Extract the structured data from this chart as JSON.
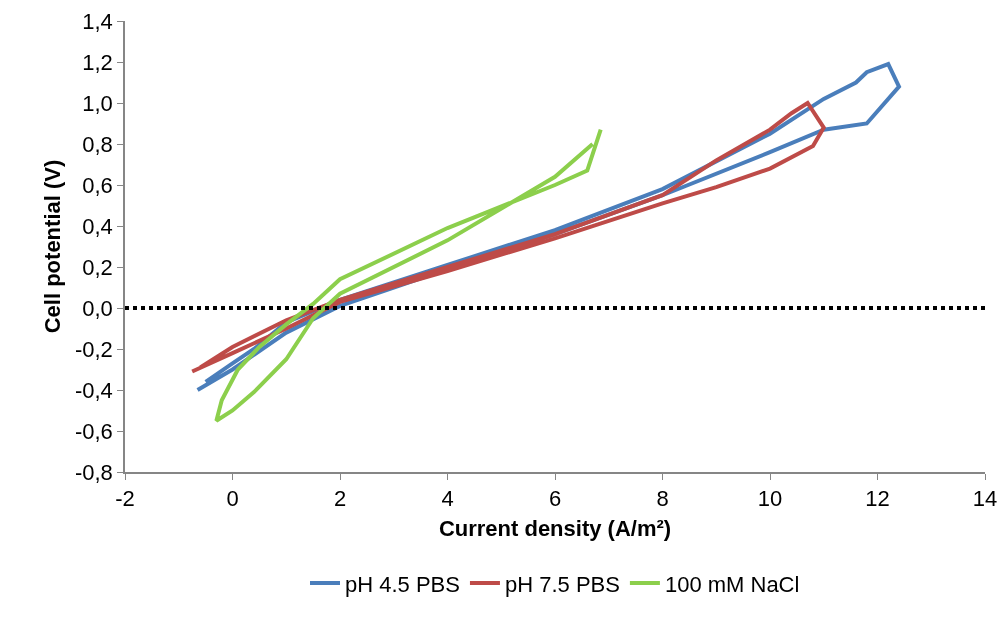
{
  "chart_data": {
    "type": "line",
    "xlabel": "Current density (A/m²)",
    "ylabel": "Cell potential (V)",
    "xlim": [
      -2,
      14
    ],
    "xticks": [
      -2,
      0,
      2,
      4,
      6,
      8,
      10,
      12,
      14
    ],
    "ylim": [
      -0.8,
      1.4
    ],
    "yticks": [
      {
        "value": -0.8,
        "label": "-0,8"
      },
      {
        "value": -0.6,
        "label": "-0,6"
      },
      {
        "value": -0.4,
        "label": "-0,4"
      },
      {
        "value": -0.2,
        "label": "-0,2"
      },
      {
        "value": 0,
        "label": "0,0"
      },
      {
        "value": 0.2,
        "label": "0,2"
      },
      {
        "value": 0.4,
        "label": "0,4"
      },
      {
        "value": 0.6,
        "label": "0,6"
      },
      {
        "value": 0.8,
        "label": "0,8"
      },
      {
        "value": 1.0,
        "label": "1,0"
      },
      {
        "value": 1.2,
        "label": "1,2"
      },
      {
        "value": 1.4,
        "label": "1,4"
      }
    ],
    "grid": false,
    "legend": "bottom",
    "marker": "none",
    "line_style": "solid",
    "ref_lines": [
      {
        "axis": "y",
        "value": 0,
        "color": "#000000",
        "line_style": "dotted"
      }
    ],
    "series": [
      {
        "name": "pH 4.5 PBS",
        "color": "#4a7ebb",
        "x": [
          -0.65,
          0,
          1,
          2,
          3,
          4,
          6,
          8,
          10,
          11,
          11.8,
          12.4,
          12.2,
          11.8,
          11.6,
          11,
          10,
          8,
          6,
          4,
          2,
          1,
          0.4,
          0,
          -0.5
        ],
        "values": [
          -0.4,
          -0.3,
          -0.12,
          0.01,
          0.1,
          0.19,
          0.36,
          0.55,
          0.76,
          0.87,
          0.9,
          1.08,
          1.19,
          1.15,
          1.1,
          1.02,
          0.85,
          0.58,
          0.38,
          0.21,
          0.04,
          -0.07,
          -0.2,
          -0.27,
          -0.36
        ]
      },
      {
        "name": "pH 7.5 PBS",
        "color": "#be4b48",
        "x": [
          -0.75,
          0,
          1,
          2,
          4,
          6,
          8,
          9,
          10,
          10.8,
          11,
          10.7,
          10.4,
          10,
          9,
          8,
          6,
          4,
          2,
          1,
          0,
          -0.6
        ],
        "values": [
          -0.31,
          -0.22,
          -0.1,
          0.03,
          0.18,
          0.34,
          0.51,
          0.59,
          0.68,
          0.79,
          0.88,
          1.0,
          0.95,
          0.87,
          0.72,
          0.55,
          0.36,
          0.2,
          0.04,
          -0.06,
          -0.19,
          -0.29
        ]
      },
      {
        "name": "100 mM NaCl",
        "color": "#8ccf4c",
        "x": [
          6.85,
          6.6,
          6,
          4,
          2,
          1.5,
          1,
          0.5,
          0.1,
          -0.2,
          -0.3,
          0,
          0.4,
          1,
          1.5,
          2,
          4,
          6,
          6.7
        ],
        "values": [
          0.87,
          0.67,
          0.6,
          0.39,
          0.14,
          0.02,
          -0.08,
          -0.19,
          -0.3,
          -0.45,
          -0.55,
          -0.5,
          -0.41,
          -0.25,
          -0.05,
          0.07,
          0.33,
          0.64,
          0.8
        ]
      }
    ]
  }
}
